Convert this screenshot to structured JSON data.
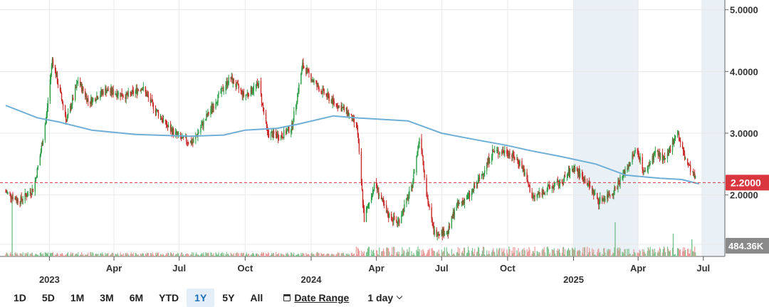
{
  "chart_data": {
    "type": "candlestick",
    "price_axis": {
      "range": [
        1.2,
        5.1
      ],
      "ticks": [
        {
          "value": 5.0,
          "label": "5.0000"
        },
        {
          "value": 4.0,
          "label": "4.0000"
        },
        {
          "value": 3.0,
          "label": "3.0000"
        },
        {
          "value": 2.0,
          "label": "2.0000"
        }
      ]
    },
    "x_axis": {
      "start": "2022-11-01",
      "end": "2025-07-31",
      "ticks": [
        {
          "date": "2023-01-01",
          "label": "2023",
          "major": true
        },
        {
          "date": "2023-04-01",
          "label": "Apr",
          "major": false
        },
        {
          "date": "2023-07-01",
          "label": "Jul",
          "major": false
        },
        {
          "date": "2023-10-01",
          "label": "Oct",
          "major": false
        },
        {
          "date": "2024-01-01",
          "label": "2024",
          "major": true
        },
        {
          "date": "2024-04-01",
          "label": "Apr",
          "major": false
        },
        {
          "date": "2024-07-01",
          "label": "Jul",
          "major": false
        },
        {
          "date": "2024-10-01",
          "label": "Oct",
          "major": false
        },
        {
          "date": "2025-01-01",
          "label": "2025",
          "major": true
        },
        {
          "date": "2025-04-01",
          "label": "Apr",
          "major": false
        },
        {
          "date": "2025-07-01",
          "label": "Jul",
          "major": false
        }
      ]
    },
    "price_path": [
      [
        "2022-11-01",
        2.05
      ],
      [
        "2022-11-20",
        1.9
      ],
      [
        "2022-12-10",
        2.1
      ],
      [
        "2022-12-20",
        2.7
      ],
      [
        "2022-12-28",
        3.3
      ],
      [
        "2023-01-05",
        4.2
      ],
      [
        "2023-01-15",
        3.7
      ],
      [
        "2023-01-25",
        3.2
      ],
      [
        "2023-02-10",
        3.85
      ],
      [
        "2023-02-25",
        3.5
      ],
      [
        "2023-03-20",
        3.7
      ],
      [
        "2023-04-20",
        3.6
      ],
      [
        "2023-05-10",
        3.75
      ],
      [
        "2023-05-25",
        3.45
      ],
      [
        "2023-06-15",
        3.1
      ],
      [
        "2023-07-05",
        2.9
      ],
      [
        "2023-07-20",
        2.85
      ],
      [
        "2023-08-05",
        3.2
      ],
      [
        "2023-08-25",
        3.6
      ],
      [
        "2023-09-10",
        3.9
      ],
      [
        "2023-09-30",
        3.6
      ],
      [
        "2023-10-20",
        3.8
      ],
      [
        "2023-11-01",
        3.0
      ],
      [
        "2023-11-20",
        2.95
      ],
      [
        "2023-12-05",
        3.1
      ],
      [
        "2023-12-20",
        4.1
      ],
      [
        "2024-01-10",
        3.75
      ],
      [
        "2024-02-01",
        3.5
      ],
      [
        "2024-02-20",
        3.35
      ],
      [
        "2024-03-05",
        3.1
      ],
      [
        "2024-03-15",
        1.6
      ],
      [
        "2024-03-30",
        2.2
      ],
      [
        "2024-04-15",
        1.7
      ],
      [
        "2024-05-01",
        1.55
      ],
      [
        "2024-05-20",
        2.1
      ],
      [
        "2024-06-01",
        3.0
      ],
      [
        "2024-06-10",
        2.0
      ],
      [
        "2024-06-20",
        1.4
      ],
      [
        "2024-07-10",
        1.4
      ],
      [
        "2024-07-20",
        1.8
      ],
      [
        "2024-08-10",
        2.0
      ],
      [
        "2024-08-25",
        2.3
      ],
      [
        "2024-09-10",
        2.7
      ],
      [
        "2024-10-01",
        2.7
      ],
      [
        "2024-10-20",
        2.5
      ],
      [
        "2024-11-05",
        1.95
      ],
      [
        "2024-11-25",
        2.1
      ],
      [
        "2024-12-15",
        2.2
      ],
      [
        "2025-01-01",
        2.45
      ],
      [
        "2025-01-20",
        2.2
      ],
      [
        "2025-02-05",
        1.9
      ],
      [
        "2025-02-25",
        2.05
      ],
      [
        "2025-03-15",
        2.4
      ],
      [
        "2025-03-30",
        2.75
      ],
      [
        "2025-04-10",
        2.35
      ],
      [
        "2025-04-25",
        2.7
      ],
      [
        "2025-05-10",
        2.55
      ],
      [
        "2025-05-25",
        3.05
      ],
      [
        "2025-06-05",
        2.6
      ],
      [
        "2025-06-20",
        2.25
      ]
    ],
    "moving_average": [
      [
        "2022-11-01",
        3.45
      ],
      [
        "2022-12-15",
        3.25
      ],
      [
        "2023-01-15",
        3.18
      ],
      [
        "2023-03-01",
        3.05
      ],
      [
        "2023-05-01",
        2.98
      ],
      [
        "2023-07-15",
        2.95
      ],
      [
        "2023-09-01",
        2.97
      ],
      [
        "2023-10-01",
        3.05
      ],
      [
        "2023-11-15",
        3.08
      ],
      [
        "2023-12-15",
        3.15
      ],
      [
        "2024-02-01",
        3.28
      ],
      [
        "2024-03-01",
        3.25
      ],
      [
        "2024-04-01",
        3.23
      ],
      [
        "2024-05-15",
        3.2
      ],
      [
        "2024-07-01",
        3.0
      ],
      [
        "2024-08-15",
        2.9
      ],
      [
        "2024-10-01",
        2.8
      ],
      [
        "2024-11-01",
        2.72
      ],
      [
        "2024-12-15",
        2.62
      ],
      [
        "2025-02-01",
        2.5
      ],
      [
        "2025-03-15",
        2.32
      ],
      [
        "2025-05-01",
        2.27
      ],
      [
        "2025-06-01",
        2.25
      ],
      [
        "2025-06-25",
        2.18
      ]
    ],
    "volume_spikes": [
      [
        "2022-11-10",
        1.0
      ],
      [
        "2025-02-28",
        0.6
      ],
      [
        "2025-05-20",
        0.4
      ],
      [
        "2025-06-15",
        0.3
      ]
    ],
    "shaded_ranges": [
      {
        "from": "2025-01-01",
        "to": "2025-04-01"
      },
      {
        "from": "2025-06-28",
        "to": "2025-07-31"
      }
    ],
    "reference_line": {
      "value": 2.2,
      "label": "2.2000"
    },
    "volume_label": "484.36K",
    "colors": {
      "up": "#2e9e48",
      "down": "#c92a2a",
      "ma": "#6fafd6",
      "ref": "#d9363e",
      "grid": "#e9e9e9",
      "shade": "#dbe7f2"
    }
  },
  "range_buttons": [
    "1D",
    "5D",
    "1M",
    "3M",
    "6M",
    "YTD",
    "1Y",
    "5Y",
    "All"
  ],
  "active_range": "1Y",
  "date_range_label": "Date Range",
  "interval_label": "1 day"
}
